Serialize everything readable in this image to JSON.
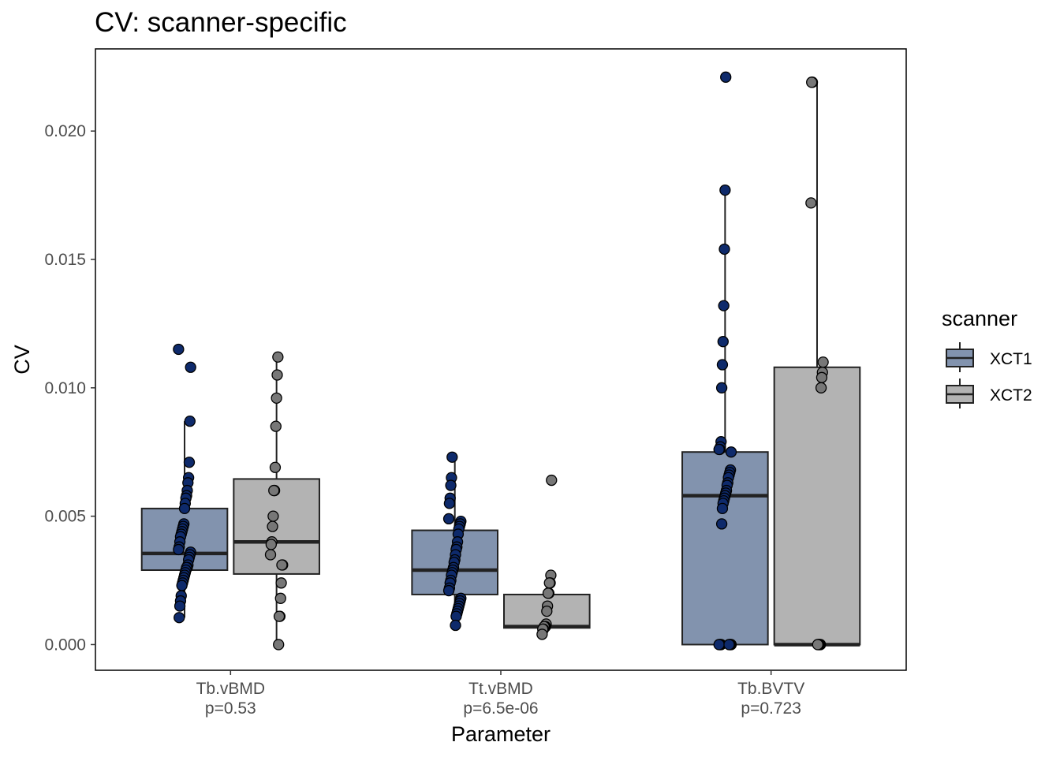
{
  "chart_data": {
    "type": "box",
    "title": "CV: scanner-specific",
    "xlabel": "Parameter",
    "ylabel": "CV",
    "ylim": [
      -0.001,
      0.0232
    ],
    "yticks": [
      0.0,
      0.005,
      0.01,
      0.015,
      0.02
    ],
    "ytick_labels": [
      "0.000",
      "0.005",
      "0.010",
      "0.015",
      "0.020"
    ],
    "grid": false,
    "legend": {
      "title": "scanner",
      "position": "right",
      "entries": [
        "XCT1",
        "XCT2"
      ]
    },
    "categories": [
      {
        "name": "Tb.vBMD",
        "pvalue": "p=0.53"
      },
      {
        "name": "Tt.vBMD",
        "pvalue": "p=6.5e-06"
      },
      {
        "name": "Tb.BVTV",
        "pvalue": "p=0.723"
      }
    ],
    "series": [
      {
        "name": "XCT1",
        "box_color": "#8293ae",
        "point_color": "#0e2a6b",
        "boxes": [
          {
            "min": 0.00105,
            "q1": 0.0029,
            "median": 0.00355,
            "q3": 0.0053,
            "max": 0.0087
          },
          {
            "min": 0.00075,
            "q1": 0.00195,
            "median": 0.0029,
            "q3": 0.00445,
            "max": 0.0073
          },
          {
            "min": 0.0,
            "q1": 0.0,
            "median": 0.0058,
            "q3": 0.0075,
            "max": 0.0177
          }
        ],
        "points": [
          [
            0.0115,
            0.0108,
            0.0087,
            0.0071,
            0.0065,
            0.0063,
            0.006,
            0.0058,
            0.0057,
            0.0055,
            0.0053,
            0.0047,
            0.0046,
            0.0045,
            0.0044,
            0.0043,
            0.0042,
            0.004,
            0.0038,
            0.0037,
            0.0036,
            0.0035,
            0.0034,
            0.0033,
            0.0031,
            0.003,
            0.003,
            0.0029,
            0.0028,
            0.0027,
            0.0026,
            0.0025,
            0.0024,
            0.0023,
            0.0019,
            0.0017,
            0.0015,
            0.00105
          ],
          [
            0.0073,
            0.0065,
            0.0062,
            0.0057,
            0.0055,
            0.0049,
            0.0048,
            0.0047,
            0.0046,
            0.0045,
            0.0043,
            0.004,
            0.0038,
            0.0037,
            0.0035,
            0.0033,
            0.0032,
            0.003,
            0.0029,
            0.0028,
            0.0027,
            0.0025,
            0.0024,
            0.0022,
            0.0021,
            0.0018,
            0.0017,
            0.0016,
            0.0015,
            0.0014,
            0.0013,
            0.0012,
            0.0011,
            0.00075
          ],
          [
            0.0221,
            0.0177,
            0.0154,
            0.0132,
            0.0118,
            0.0109,
            0.01,
            0.0079,
            0.0077,
            0.0076,
            0.0076,
            0.0075,
            0.0068,
            0.0067,
            0.0066,
            0.0065,
            0.0063,
            0.0062,
            0.006,
            0.0059,
            0.0058,
            0.0057,
            0.0056,
            0.0055,
            0.0053,
            0.0047,
            0.0,
            0.0,
            0.0,
            0.0,
            0.0,
            0.0,
            0.0,
            0.0
          ]
        ]
      },
      {
        "name": "XCT2",
        "box_color": "#b3b3b3",
        "point_color": "#777777",
        "boxes": [
          {
            "min": 0.0,
            "q1": 0.00275,
            "median": 0.004,
            "q3": 0.00645,
            "max": 0.0112
          },
          {
            "min": 0.0004,
            "q1": 0.00065,
            "median": 0.0007,
            "q3": 0.00195,
            "max": 0.0027
          },
          {
            "min": 0.0,
            "q1": 0.0,
            "median": 0.0,
            "q3": 0.0108,
            "max": 0.0219
          }
        ],
        "points": [
          [
            0.0112,
            0.0105,
            0.0096,
            0.0085,
            0.0069,
            0.006,
            0.006,
            0.005,
            0.0046,
            0.004,
            0.0039,
            0.0035,
            0.0031,
            0.0031,
            0.0024,
            0.0018,
            0.0011,
            0.0011,
            0.0
          ],
          [
            0.0064,
            0.0027,
            0.0024,
            0.0024,
            0.002,
            0.002,
            0.0015,
            0.0013,
            0.0008,
            0.0007,
            0.0007,
            0.0007,
            0.0006,
            0.0006,
            0.0004
          ],
          [
            0.0219,
            0.0219,
            0.0172,
            0.011,
            0.0106,
            0.0104,
            0.01,
            0.0,
            0.0,
            0.0,
            0.0,
            0.0
          ]
        ]
      }
    ]
  }
}
